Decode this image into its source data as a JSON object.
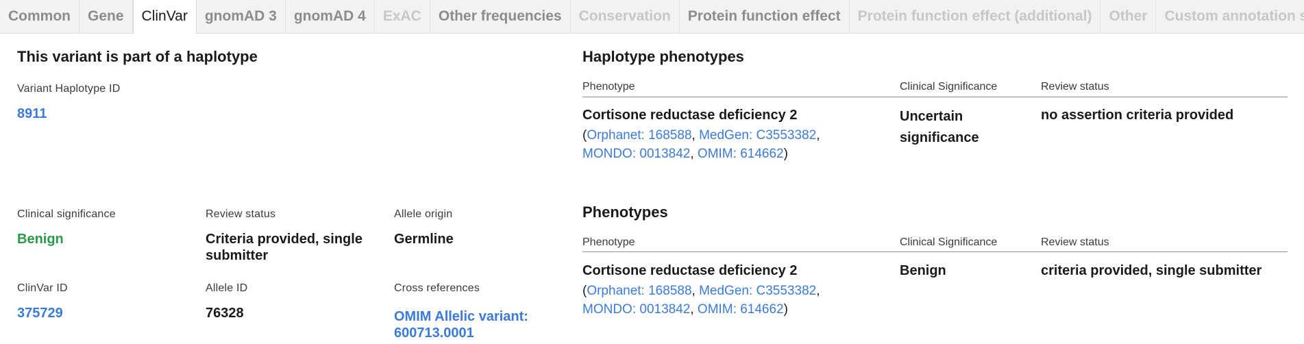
{
  "tabs": [
    {
      "label": "Common",
      "state": "enabled"
    },
    {
      "label": "Gene",
      "state": "enabled"
    },
    {
      "label": "ClinVar",
      "state": "active"
    },
    {
      "label": "gnomAD 3",
      "state": "enabled"
    },
    {
      "label": "gnomAD 4",
      "state": "enabled"
    },
    {
      "label": "ExAC",
      "state": "disabled"
    },
    {
      "label": "Other frequencies",
      "state": "enabled"
    },
    {
      "label": "Conservation",
      "state": "disabled"
    },
    {
      "label": "Protein function effect",
      "state": "enabled"
    },
    {
      "label": "Protein function effect (additional)",
      "state": "disabled"
    },
    {
      "label": "Other",
      "state": "disabled"
    },
    {
      "label": "Custom annotation sources",
      "state": "disabled"
    }
  ],
  "haplotype": {
    "title": "This variant is part of a haplotype",
    "id_label": "Variant Haplotype ID",
    "id_value": "8911"
  },
  "summary": {
    "clin_sig_label": "Clinical significance",
    "clin_sig_value": "Benign",
    "review_label": "Review status",
    "review_value": "Criteria provided, single submitter",
    "allele_origin_label": "Allele origin",
    "allele_origin_value": "Germline",
    "clinvar_id_label": "ClinVar ID",
    "clinvar_id_value": "375729",
    "allele_id_label": "Allele ID",
    "allele_id_value": "76328",
    "xref_label": "Cross references",
    "xref_value": "OMIM Allelic variant: 600713.0001"
  },
  "headers": {
    "phenotype": "Phenotype",
    "clinical_significance": "Clinical Significance",
    "review_status": "Review status"
  },
  "haplotype_phenotypes": {
    "title": "Haplotype phenotypes",
    "row": {
      "name": "Cortisone reductase deficiency 2",
      "open": "(",
      "close": ")",
      "sep": ", ",
      "refs": [
        "Orphanet: 168588",
        "MedGen: C3553382",
        "MONDO: 0013842",
        "OMIM: 614662"
      ],
      "significance": "Uncertain significance",
      "review": "no assertion criteria provided"
    }
  },
  "phenotypes": {
    "title": "Phenotypes",
    "row": {
      "name": "Cortisone reductase deficiency 2",
      "open": "(",
      "close": ")",
      "sep": ", ",
      "refs": [
        "Orphanet: 168588",
        "MedGen: C3553382",
        "MONDO: 0013842",
        "OMIM: 614662"
      ],
      "significance": "Benign",
      "review": "criteria provided, single submitter"
    }
  },
  "colors": {
    "link": "#3b7bd6",
    "benign": "#2a9a48",
    "tab_bar": "#f2f2f2"
  }
}
